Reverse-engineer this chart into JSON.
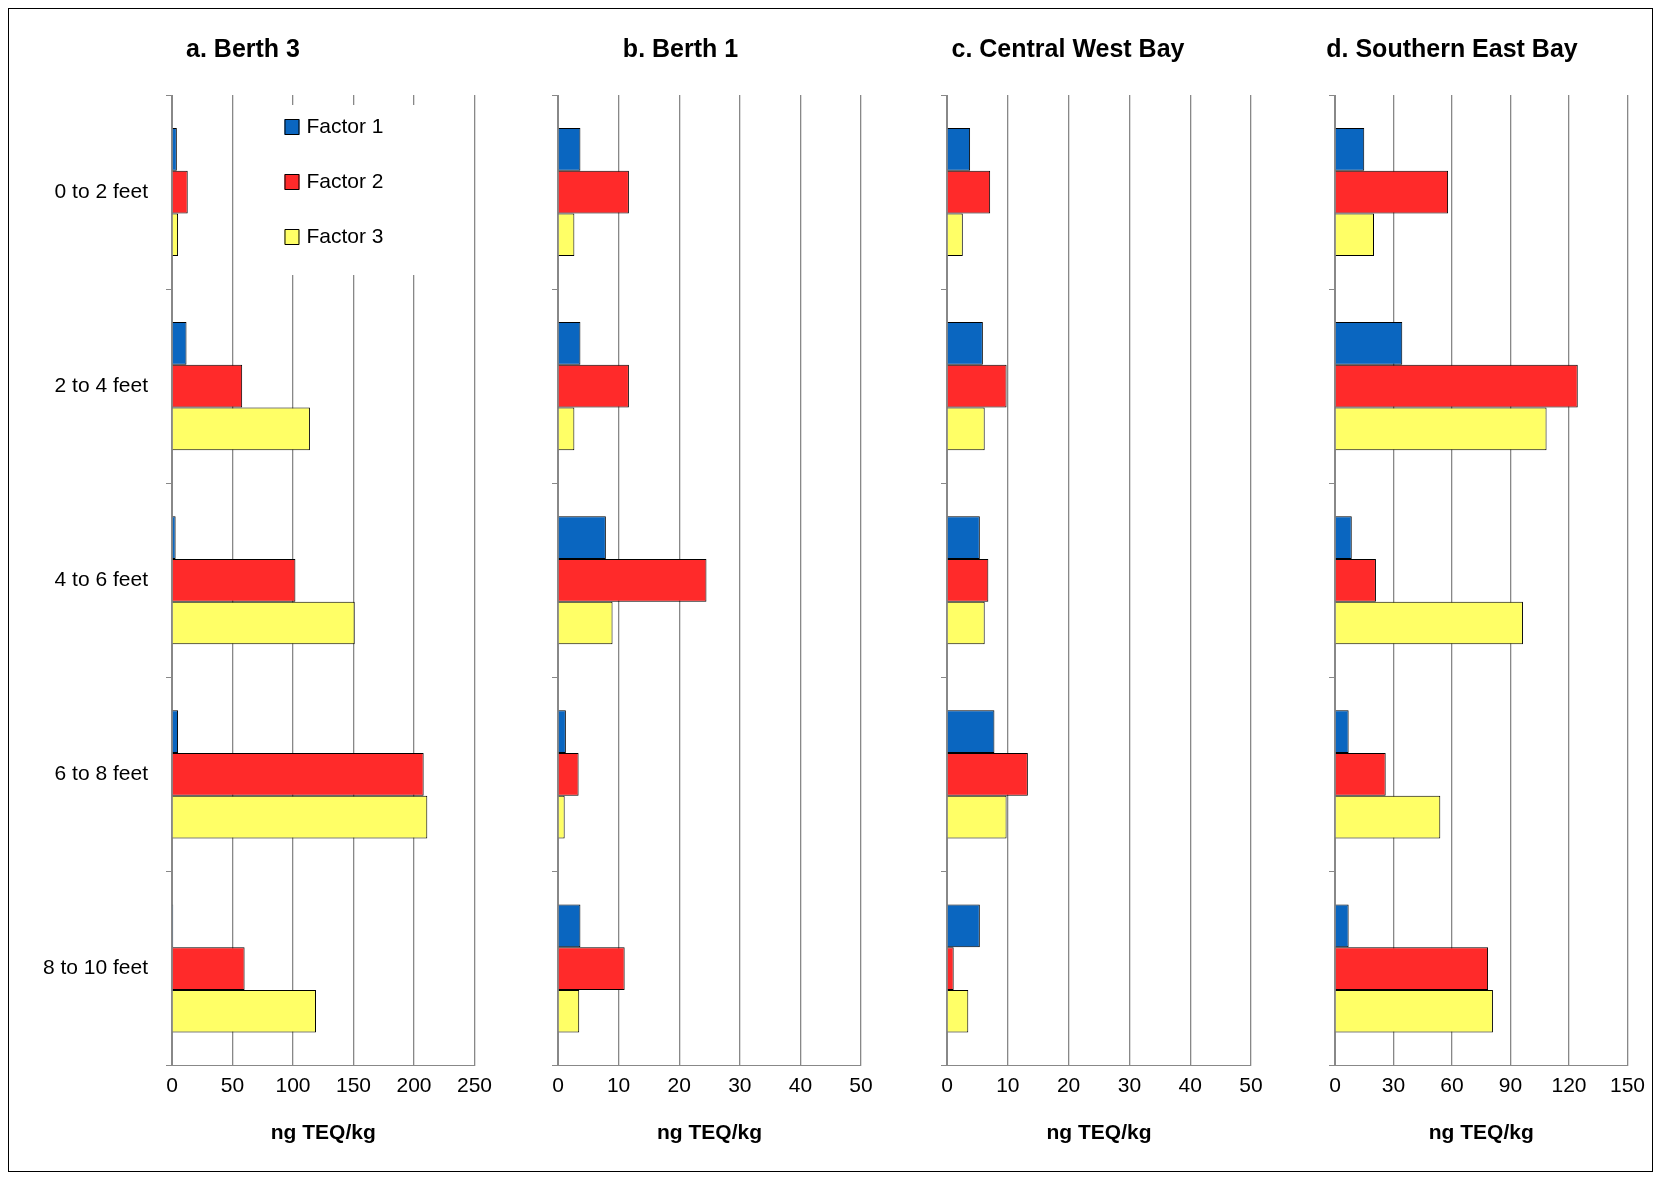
{
  "chart_data": [
    {
      "type": "bar",
      "orientation": "horizontal",
      "title": "a. Berth 3",
      "xlabel": "ng TEQ/kg",
      "categories": [
        "0 to 2 feet",
        "2 to 4 feet",
        "4 to 6 feet",
        "6 to 8 feet",
        "8 to 10 feet"
      ],
      "xlim": [
        0,
        250
      ],
      "xticks": [
        0,
        50,
        100,
        150,
        200,
        250
      ],
      "grid": "x",
      "legend": "top right",
      "series": [
        {
          "name": "Factor 1",
          "color": "#0a66c0",
          "values": [
            4,
            12,
            3,
            5,
            1
          ]
        },
        {
          "name": "Factor 2",
          "color": "#ff2a2a",
          "values": [
            13,
            58,
            102,
            208,
            60
          ]
        },
        {
          "name": "Factor 3",
          "color": "#ffff66",
          "values": [
            5,
            114,
            151,
            211,
            119
          ]
        }
      ]
    },
    {
      "type": "bar",
      "orientation": "horizontal",
      "title": "b. Berth 1",
      "xlabel": "ng TEQ/kg",
      "categories": [
        null,
        null,
        null,
        null,
        null
      ],
      "xlim": [
        0,
        50
      ],
      "xticks": [
        0,
        10,
        20,
        30,
        40,
        50
      ],
      "grid": "x",
      "tick_labels": "x",
      "series": [
        {
          "color": "#0a66c0",
          "values": [
            3.7,
            3.7,
            7.9,
            1.3,
            3.7
          ]
        },
        {
          "color": "#ff2a2a",
          "values": [
            11.7,
            11.7,
            24.5,
            3.4,
            11.0
          ]
        },
        {
          "color": "#ffff66",
          "values": [
            2.7,
            2.7,
            9.0,
            1.1,
            3.5
          ]
        }
      ]
    },
    {
      "type": "bar",
      "orientation": "horizontal",
      "title": "c. Central West Bay",
      "xlabel": "ng TEQ/kg",
      "categories": [
        null,
        null,
        null,
        null,
        null
      ],
      "xlim": [
        0,
        50
      ],
      "xticks": [
        0,
        10,
        20,
        30,
        40,
        50
      ],
      "grid": "x",
      "tick_labels": "x",
      "series": [
        {
          "color": "#0a66c0",
          "values": [
            3.8,
            5.9,
            5.4,
            7.8,
            5.4
          ]
        },
        {
          "color": "#ff2a2a",
          "values": [
            7.1,
            9.8,
            6.8,
            13.3,
            1.1
          ]
        },
        {
          "color": "#ffff66",
          "values": [
            2.6,
            6.2,
            6.2,
            9.8,
            3.5
          ]
        }
      ]
    },
    {
      "type": "bar",
      "orientation": "horizontal",
      "title": "d. Southern East Bay",
      "xlabel": "ng TEQ/kg",
      "categories": [
        null,
        null,
        null,
        null,
        null
      ],
      "xlim": [
        0,
        150
      ],
      "xticks": [
        0,
        30,
        60,
        90,
        120,
        150
      ],
      "grid": "x",
      "tick_labels": "x",
      "series": [
        {
          "color": "#0a66c0",
          "values": [
            15,
            34.5,
            8.6,
            7,
            7
          ]
        },
        {
          "color": "#ff2a2a",
          "values": [
            58,
            124.5,
            21,
            26,
            78.5
          ]
        },
        {
          "color": "#ffff66",
          "values": [
            20,
            108.5,
            96.4,
            54,
            81
          ]
        }
      ]
    }
  ]
}
